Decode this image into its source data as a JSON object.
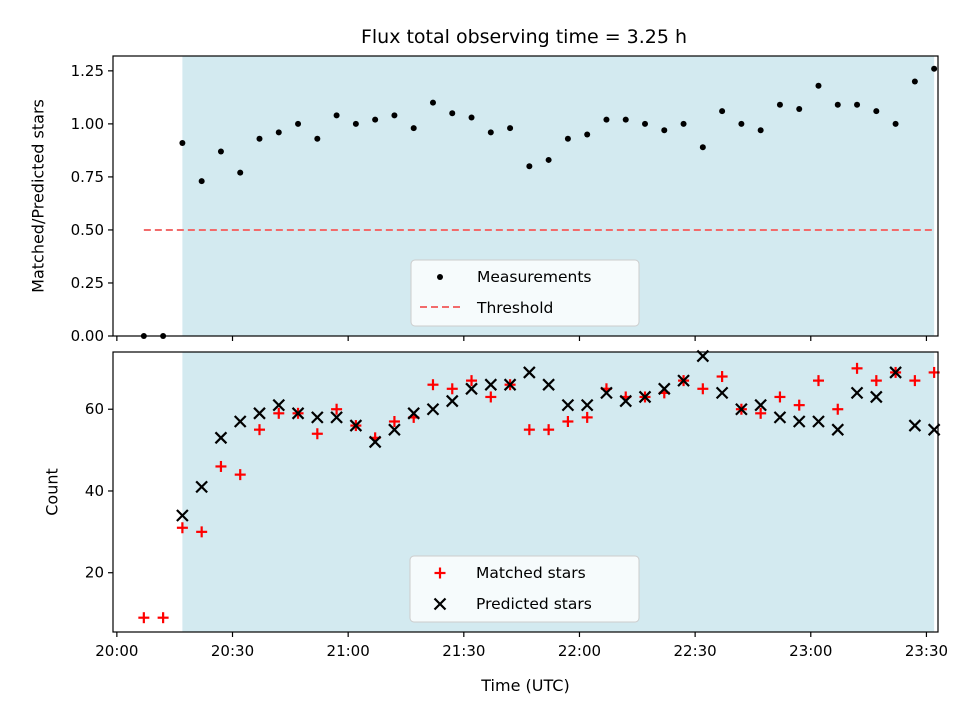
{
  "title": "Flux total observing time = 3.25 h",
  "colors": {
    "shade": "#d3eaf0",
    "threshold": "#f26b6b",
    "matched": "#ff0000",
    "predicted": "#000000",
    "measurement": "#000000"
  },
  "chart_data": [
    {
      "type": "scatter",
      "panel": "top",
      "ylabel": "Matched/Predicted stars",
      "ylim": [
        0,
        1.32
      ],
      "yticks": [
        0.0,
        0.25,
        0.5,
        0.75,
        1.0,
        1.25
      ],
      "ytick_labels": [
        "0.00",
        "0.25",
        "0.50",
        "0.75",
        "1.00",
        "1.25"
      ],
      "shaded_span": [
        "20:17",
        "23:32"
      ],
      "threshold": {
        "name": "Threshold",
        "value": 0.5,
        "x_range": [
          "20:07",
          "23:32"
        ]
      },
      "legend": {
        "placement": "lower center",
        "entries": [
          "Measurements",
          "Threshold"
        ]
      },
      "series": [
        {
          "name": "Measurements",
          "x": [
            "20:07",
            "20:12",
            "20:17",
            "20:22",
            "20:27",
            "20:32",
            "20:37",
            "20:42",
            "20:47",
            "20:52",
            "20:57",
            "21:02",
            "21:07",
            "21:12",
            "21:17",
            "21:22",
            "21:27",
            "21:32",
            "21:37",
            "21:42",
            "21:47",
            "21:52",
            "21:57",
            "22:02",
            "22:07",
            "22:12",
            "22:17",
            "22:22",
            "22:27",
            "22:32",
            "22:37",
            "22:42",
            "22:47",
            "22:52",
            "22:57",
            "23:02",
            "23:07",
            "23:12",
            "23:17",
            "23:22",
            "23:27",
            "23:32"
          ],
          "y": [
            0.0,
            0.0,
            0.91,
            0.73,
            0.87,
            0.77,
            0.93,
            0.96,
            1.0,
            0.93,
            1.04,
            1.0,
            1.02,
            1.04,
            0.98,
            1.1,
            1.05,
            1.03,
            0.96,
            0.98,
            0.8,
            0.83,
            0.93,
            0.95,
            1.02,
            1.02,
            1.0,
            0.97,
            1.0,
            0.89,
            1.06,
            1.0,
            0.97,
            1.09,
            1.07,
            1.18,
            1.09,
            1.09,
            1.06,
            1.0,
            1.2,
            1.26
          ]
        }
      ]
    },
    {
      "type": "scatter",
      "panel": "bottom",
      "ylabel": "Count",
      "xlabel": "Time (UTC)",
      "ylim": [
        5.5,
        74
      ],
      "yticks": [
        20,
        40,
        60
      ],
      "ytick_labels": [
        "20",
        "40",
        "60"
      ],
      "xlim": [
        "19:59",
        "23:33"
      ],
      "xticks": [
        "20:00",
        "20:30",
        "21:00",
        "21:30",
        "22:00",
        "22:30",
        "23:00",
        "23:30"
      ],
      "shaded_span": [
        "20:17",
        "23:32"
      ],
      "legend": {
        "placement": "lower center",
        "entries": [
          "Matched stars",
          "Predicted stars"
        ]
      },
      "series": [
        {
          "name": "Matched stars",
          "x": [
            "20:07",
            "20:12",
            "20:17",
            "20:22",
            "20:27",
            "20:32",
            "20:37",
            "20:42",
            "20:47",
            "20:52",
            "20:57",
            "21:02",
            "21:07",
            "21:12",
            "21:17",
            "21:22",
            "21:27",
            "21:32",
            "21:37",
            "21:42",
            "21:47",
            "21:52",
            "21:57",
            "22:02",
            "22:07",
            "22:12",
            "22:17",
            "22:22",
            "22:27",
            "22:32",
            "22:37",
            "22:42",
            "22:47",
            "22:52",
            "22:57",
            "23:02",
            "23:07",
            "23:12",
            "23:17",
            "23:22",
            "23:27",
            "23:32"
          ],
          "y": [
            9,
            9,
            31,
            30,
            46,
            44,
            55,
            59,
            59,
            54,
            60,
            56,
            53,
            57,
            58,
            66,
            65,
            67,
            63,
            66,
            55,
            55,
            57,
            58,
            65,
            63,
            63,
            64,
            67,
            65,
            68,
            60,
            59,
            63,
            61,
            67,
            60,
            70,
            67,
            69,
            67,
            69
          ]
        },
        {
          "name": "Predicted stars",
          "x": [
            "20:17",
            "20:22",
            "20:27",
            "20:32",
            "20:37",
            "20:42",
            "20:47",
            "20:52",
            "20:57",
            "21:02",
            "21:07",
            "21:12",
            "21:17",
            "21:22",
            "21:27",
            "21:32",
            "21:37",
            "21:42",
            "21:47",
            "21:52",
            "21:57",
            "22:02",
            "22:07",
            "22:12",
            "22:17",
            "22:22",
            "22:27",
            "22:32",
            "22:37",
            "22:42",
            "22:47",
            "22:52",
            "22:57",
            "23:02",
            "23:07",
            "23:12",
            "23:17",
            "23:22",
            "23:27",
            "23:32"
          ],
          "y": [
            34,
            41,
            53,
            57,
            59,
            61,
            59,
            58,
            58,
            56,
            52,
            55,
            59,
            60,
            62,
            65,
            66,
            66,
            69,
            66,
            61,
            61,
            64,
            62,
            63,
            65,
            67,
            73,
            64,
            60,
            61,
            58,
            57,
            57,
            55,
            64,
            63,
            69,
            56,
            55
          ]
        }
      ]
    }
  ]
}
